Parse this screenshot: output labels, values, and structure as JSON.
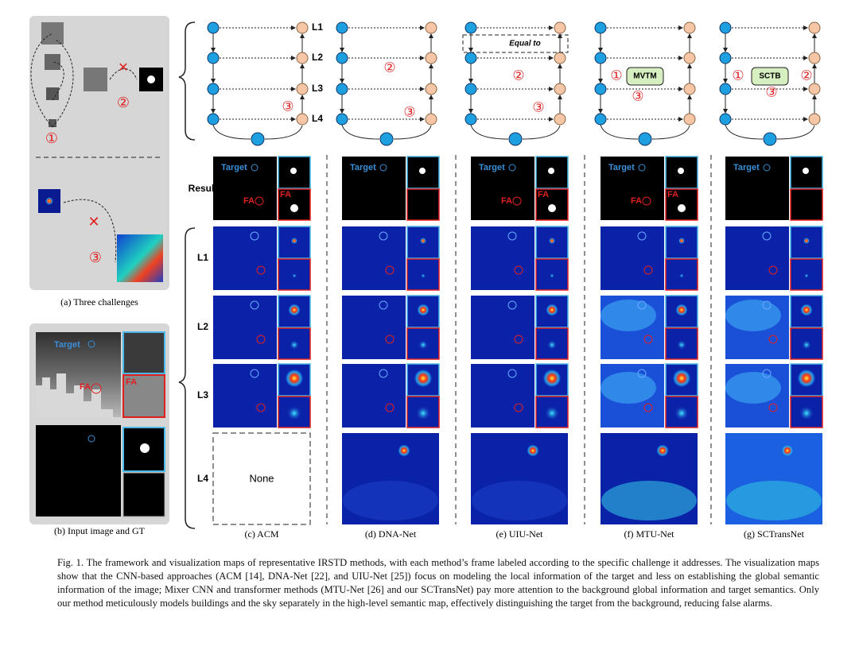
{
  "panel_a": {
    "markers": [
      "①",
      "②",
      "③"
    ],
    "caption": "(a) Three challenges"
  },
  "panel_b": {
    "target_label": "Target",
    "fa_label": "FA",
    "fa_inset_label": "FA",
    "caption": "(b) Input image and GT"
  },
  "row_labels": [
    "Result",
    "L1",
    "L2",
    "L3",
    "L4"
  ],
  "methods": [
    {
      "caption": "(c) ACM",
      "diagram": {
        "level_labels": [
          "L1",
          "L2",
          "L3",
          "L4"
        ],
        "markers": [
          "③"
        ]
      },
      "result": {
        "target_label": "Target",
        "fa_label": "FA",
        "fa_inset_label": "FA"
      },
      "l4_text": "None"
    },
    {
      "caption": "(d) DNA-Net",
      "diagram": {
        "markers": [
          "②",
          "③"
        ]
      },
      "result": {
        "target_label": "Target"
      }
    },
    {
      "caption": "(e) UIU-Net",
      "diagram": {
        "note": "Equal to",
        "markers": [
          "②",
          "③"
        ]
      },
      "result": {
        "target_label": "Target",
        "fa_label": "FA",
        "fa_inset_label": "FA"
      }
    },
    {
      "caption": "(f) MTU-Net",
      "diagram": {
        "box_label": "MVTM",
        "markers": [
          "①",
          "③"
        ]
      },
      "result": {
        "target_label": "Target",
        "fa_label": "FA",
        "fa_inset_label": "FA"
      }
    },
    {
      "caption": "(g) SCTransNet",
      "diagram": {
        "box_label": "SCTB",
        "markers": [
          "①",
          "②",
          "③"
        ]
      },
      "result": {
        "target_label": "Target"
      }
    }
  ],
  "figure_caption": "Fig. 1.  The framework and visualization maps of representative IRSTD methods, with each method’s frame labeled according to the specific challenge it addresses. The visualization maps show that the CNN-based approaches (ACM [14], DNA-Net [22], and UIU-Net [25]) focus on modeling the local information of the target and less on establishing the global semantic information of the image; Mixer CNN and transformer methods (MTU-Net [26] and our SCTransNet) pay more attention to the background global information and target semantics. Only our method meticulously models buildings and the sky separately in the high-level semantic map, effectively distinguishing the target from the background, reducing false alarms."
}
